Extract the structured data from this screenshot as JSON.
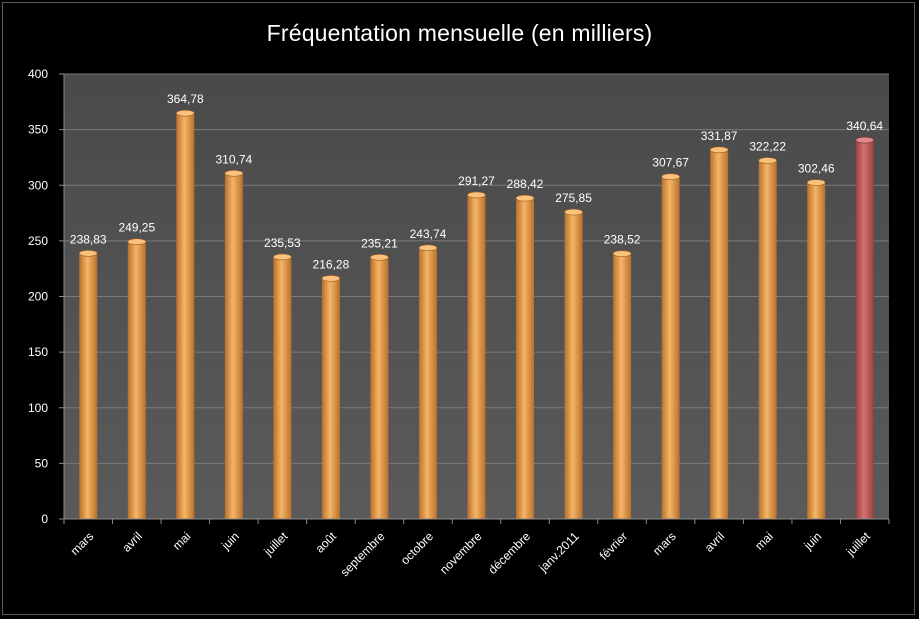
{
  "chart_data": {
    "type": "bar",
    "title": "Fréquentation mensuelle (en milliers)",
    "xlabel": "",
    "ylabel": "",
    "ylim": [
      0,
      400
    ],
    "yticks": [
      "0",
      "50",
      "100",
      "150",
      "200",
      "250",
      "300",
      "350",
      "400"
    ],
    "ytick_values": [
      0,
      50,
      100,
      150,
      200,
      250,
      300,
      350,
      400
    ],
    "grid": true,
    "categories": [
      "mars",
      "avril",
      "mai",
      "juin",
      "juillet",
      "août",
      "septembre",
      "octobre",
      "novembre",
      "décembre",
      "janv.2011",
      "février",
      "mars",
      "avril",
      "mai",
      "juin",
      "juillet"
    ],
    "values": [
      238.83,
      249.25,
      364.78,
      310.74,
      235.53,
      216.28,
      235.21,
      243.74,
      291.27,
      288.42,
      275.85,
      238.52,
      307.67,
      331.87,
      322.22,
      302.46,
      340.64
    ],
    "data_labels": [
      "238,83",
      "249,25",
      "364,78",
      "310,74",
      "235,53",
      "216,28",
      "235,21",
      "243,74",
      "291,27",
      "288,42",
      "275,85",
      "238,52",
      "307,67",
      "331,87",
      "322,22",
      "302,46",
      "340,64"
    ],
    "bar_color": "#E69A45",
    "highlight_color": "#C45A5A",
    "highlight_index": 16,
    "plot_background": "#555555"
  }
}
